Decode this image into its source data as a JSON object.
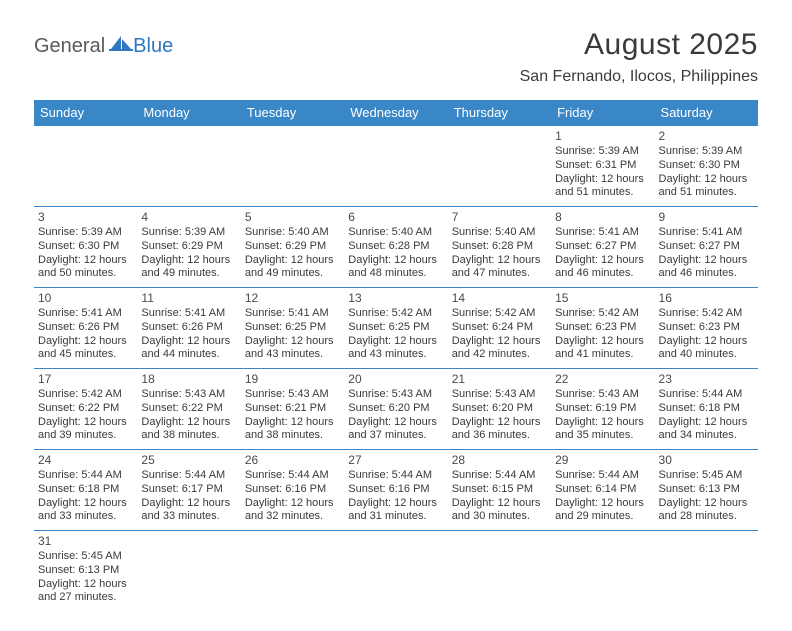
{
  "logo": {
    "general": "General",
    "blue": "Blue"
  },
  "header": {
    "month_title": "August 2025",
    "location": "San Fernando, Ilocos, Philippines"
  },
  "colors": {
    "header_bg": "#3a87c8",
    "header_text": "#ffffff",
    "rule": "#3a87c8",
    "text": "#3a3a3a",
    "logo_gray": "#5a5a5a",
    "logo_blue": "#2f78c1"
  },
  "weekdays": [
    "Sunday",
    "Monday",
    "Tuesday",
    "Wednesday",
    "Thursday",
    "Friday",
    "Saturday"
  ],
  "weeks": [
    [
      null,
      null,
      null,
      null,
      null,
      {
        "d": "1",
        "sr": "5:39 AM",
        "ss": "6:31 PM",
        "dl": "12 hours and 51 minutes."
      },
      {
        "d": "2",
        "sr": "5:39 AM",
        "ss": "6:30 PM",
        "dl": "12 hours and 51 minutes."
      }
    ],
    [
      {
        "d": "3",
        "sr": "5:39 AM",
        "ss": "6:30 PM",
        "dl": "12 hours and 50 minutes."
      },
      {
        "d": "4",
        "sr": "5:39 AM",
        "ss": "6:29 PM",
        "dl": "12 hours and 49 minutes."
      },
      {
        "d": "5",
        "sr": "5:40 AM",
        "ss": "6:29 PM",
        "dl": "12 hours and 49 minutes."
      },
      {
        "d": "6",
        "sr": "5:40 AM",
        "ss": "6:28 PM",
        "dl": "12 hours and 48 minutes."
      },
      {
        "d": "7",
        "sr": "5:40 AM",
        "ss": "6:28 PM",
        "dl": "12 hours and 47 minutes."
      },
      {
        "d": "8",
        "sr": "5:41 AM",
        "ss": "6:27 PM",
        "dl": "12 hours and 46 minutes."
      },
      {
        "d": "9",
        "sr": "5:41 AM",
        "ss": "6:27 PM",
        "dl": "12 hours and 46 minutes."
      }
    ],
    [
      {
        "d": "10",
        "sr": "5:41 AM",
        "ss": "6:26 PM",
        "dl": "12 hours and 45 minutes."
      },
      {
        "d": "11",
        "sr": "5:41 AM",
        "ss": "6:26 PM",
        "dl": "12 hours and 44 minutes."
      },
      {
        "d": "12",
        "sr": "5:41 AM",
        "ss": "6:25 PM",
        "dl": "12 hours and 43 minutes."
      },
      {
        "d": "13",
        "sr": "5:42 AM",
        "ss": "6:25 PM",
        "dl": "12 hours and 43 minutes."
      },
      {
        "d": "14",
        "sr": "5:42 AM",
        "ss": "6:24 PM",
        "dl": "12 hours and 42 minutes."
      },
      {
        "d": "15",
        "sr": "5:42 AM",
        "ss": "6:23 PM",
        "dl": "12 hours and 41 minutes."
      },
      {
        "d": "16",
        "sr": "5:42 AM",
        "ss": "6:23 PM",
        "dl": "12 hours and 40 minutes."
      }
    ],
    [
      {
        "d": "17",
        "sr": "5:42 AM",
        "ss": "6:22 PM",
        "dl": "12 hours and 39 minutes."
      },
      {
        "d": "18",
        "sr": "5:43 AM",
        "ss": "6:22 PM",
        "dl": "12 hours and 38 minutes."
      },
      {
        "d": "19",
        "sr": "5:43 AM",
        "ss": "6:21 PM",
        "dl": "12 hours and 38 minutes."
      },
      {
        "d": "20",
        "sr": "5:43 AM",
        "ss": "6:20 PM",
        "dl": "12 hours and 37 minutes."
      },
      {
        "d": "21",
        "sr": "5:43 AM",
        "ss": "6:20 PM",
        "dl": "12 hours and 36 minutes."
      },
      {
        "d": "22",
        "sr": "5:43 AM",
        "ss": "6:19 PM",
        "dl": "12 hours and 35 minutes."
      },
      {
        "d": "23",
        "sr": "5:44 AM",
        "ss": "6:18 PM",
        "dl": "12 hours and 34 minutes."
      }
    ],
    [
      {
        "d": "24",
        "sr": "5:44 AM",
        "ss": "6:18 PM",
        "dl": "12 hours and 33 minutes."
      },
      {
        "d": "25",
        "sr": "5:44 AM",
        "ss": "6:17 PM",
        "dl": "12 hours and 33 minutes."
      },
      {
        "d": "26",
        "sr": "5:44 AM",
        "ss": "6:16 PM",
        "dl": "12 hours and 32 minutes."
      },
      {
        "d": "27",
        "sr": "5:44 AM",
        "ss": "6:16 PM",
        "dl": "12 hours and 31 minutes."
      },
      {
        "d": "28",
        "sr": "5:44 AM",
        "ss": "6:15 PM",
        "dl": "12 hours and 30 minutes."
      },
      {
        "d": "29",
        "sr": "5:44 AM",
        "ss": "6:14 PM",
        "dl": "12 hours and 29 minutes."
      },
      {
        "d": "30",
        "sr": "5:45 AM",
        "ss": "6:13 PM",
        "dl": "12 hours and 28 minutes."
      }
    ],
    [
      {
        "d": "31",
        "sr": "5:45 AM",
        "ss": "6:13 PM",
        "dl": "12 hours and 27 minutes."
      },
      null,
      null,
      null,
      null,
      null,
      null
    ]
  ],
  "labels": {
    "sunrise": "Sunrise:",
    "sunset": "Sunset:",
    "daylight": "Daylight:"
  }
}
